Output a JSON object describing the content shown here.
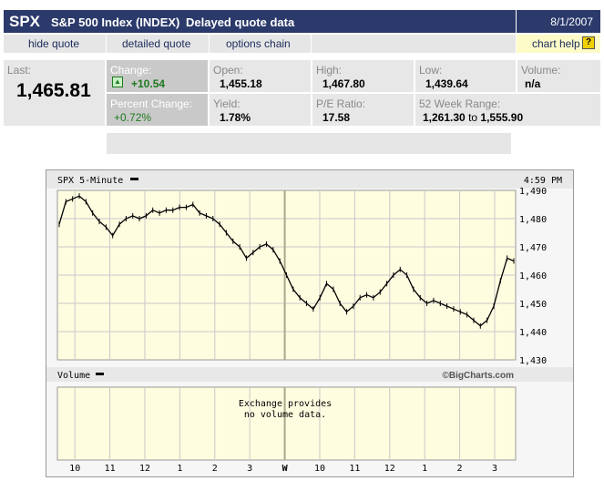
{
  "header": {
    "symbol": "SPX",
    "name": "S&P 500 Index (INDEX)",
    "delay_note": "Delayed quote data",
    "date": "8/1/2007"
  },
  "links": {
    "hide_quote": "hide quote",
    "detailed_quote": "detailed quote",
    "options_chain": "options chain",
    "chart_help": "chart help",
    "help_icon": "?"
  },
  "quote": {
    "last_label": "Last:",
    "last_value": "1,465.81",
    "change_label": "Change:",
    "change_value": "+10.54",
    "change_icon": "up-arrow-icon",
    "pct_label": "Percent Change:",
    "pct_value": "+0.72%",
    "open_label": "Open:",
    "open_value": "1,455.18",
    "yield_label": "Yield:",
    "yield_value": "1.78%",
    "high_label": "High:",
    "high_value": "1,467.80",
    "pe_label": "P/E Ratio:",
    "pe_value": "17.58",
    "low_label": "Low:",
    "low_value": "1,439.64",
    "range_label": "52 Week Range:",
    "range_low": "1,261.30",
    "range_to": "to",
    "range_high": "1,555.90",
    "volume_label": "Volume:",
    "volume_value": "n/a"
  },
  "colors": {
    "header_bg": "#2b3a6b",
    "positive": "#1f7a1f",
    "plot_bg": "#fffde0",
    "highlight_cell": "#c9c9c9"
  },
  "chart": {
    "title": "SPX 5-Minute",
    "time": "4:59 PM",
    "volume_title": "Volume",
    "watermark": "©BigCharts.com",
    "volume_note_1": "Exchange provides",
    "volume_note_2": "no volume data."
  },
  "chart_data": {
    "type": "line",
    "ylim": [
      1430,
      1490
    ],
    "yticks": [
      "1,490",
      "1,480",
      "1,470",
      "1,460",
      "1,450",
      "1,440",
      "1,430"
    ],
    "x_labels": [
      "10",
      "11",
      "12",
      "1",
      "2",
      "3",
      "W",
      "10",
      "11",
      "12",
      "1",
      "2",
      "3"
    ],
    "series": [
      {
        "values": [
          1478,
          1486,
          1487,
          1488,
          1486,
          1482,
          1479,
          1477,
          1474,
          1478,
          1480,
          1481,
          1480,
          1481,
          1483,
          1482,
          1483,
          1483,
          1484,
          1484,
          1485,
          1482,
          1481,
          1480,
          1478,
          1475,
          1472,
          1470,
          1466,
          1468,
          1470,
          1471,
          1469,
          1465,
          1460,
          1455,
          1452,
          1450,
          1448,
          1452,
          1457,
          1455,
          1450,
          1447,
          1449,
          1452,
          1453,
          1452,
          1454,
          1457,
          1460,
          1462,
          1460,
          1455,
          1452,
          1450,
          1451,
          1450,
          1449,
          1448,
          1447,
          1446,
          1444,
          1442,
          1444,
          1449,
          1458,
          1466,
          1465
        ]
      }
    ]
  }
}
